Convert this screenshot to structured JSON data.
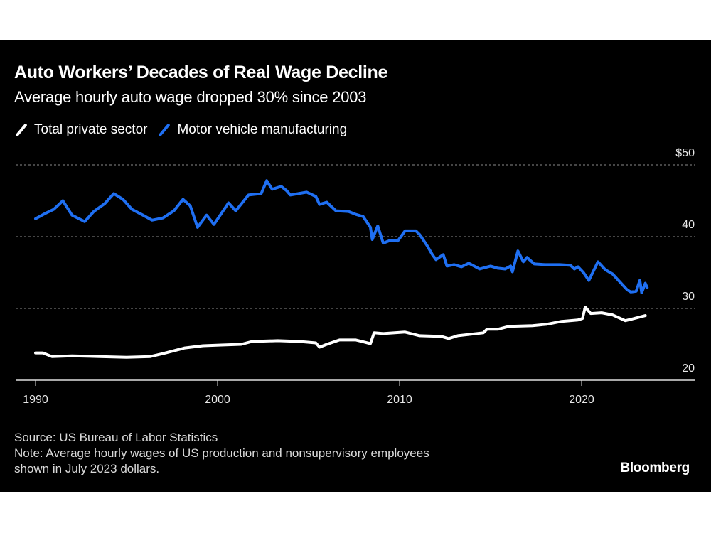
{
  "header": {
    "title": "Auto Workers’ Decades of Real Wage Decline",
    "subtitle": "Average hourly auto wage dropped 30% since 2003"
  },
  "legend": [
    {
      "label": "Total private sector",
      "color": "#ffffff"
    },
    {
      "label": "Motor vehicle manufacturing",
      "color": "#1f6ff2"
    }
  ],
  "footer": {
    "source": "Source: US Bureau of Labor Statistics",
    "note_line1": "Note: Average hourly wages of US production and nonsupervisory employees",
    "note_line2": "shown in July 2023 dollars.",
    "brand": "Bloomberg"
  },
  "chart_data": {
    "type": "line",
    "title": "Auto Workers’ Decades of Real Wage Decline",
    "subtitle": "Average hourly auto wage dropped 30% since 2003",
    "xlabel": "",
    "ylabel": "",
    "xlim": [
      1989,
      2026
    ],
    "ylim": [
      20,
      50
    ],
    "x_ticks": [
      1990,
      2000,
      2010,
      2020
    ],
    "x_tick_labels": [
      "1990",
      "2000",
      "2010",
      "2020"
    ],
    "y_ticks": [
      20,
      30,
      40,
      50
    ],
    "y_tick_labels": [
      "20",
      "30",
      "40",
      "$50"
    ],
    "grid": "horizontal dotted",
    "legend_position": "top-left",
    "series": [
      {
        "name": "Total private sector",
        "color": "#ffffff",
        "x": [
          1990,
          1990.4,
          1990.9,
          1992,
          1993.5,
          1995,
          1996.3,
          1997,
          1998.2,
          1999.2,
          2000.2,
          2001.3,
          2001.9,
          2003.3,
          2004.5,
          2005.4,
          2005.6,
          2006,
          2006.7,
          2007.6,
          2008.4,
          2008.6,
          2009.1,
          2010.3,
          2011.1,
          2012.3,
          2012.7,
          2013.2,
          2014.6,
          2014.8,
          2015.4,
          2016,
          2017.3,
          2018.1,
          2018.9,
          2019.8,
          2020.05,
          2020.2,
          2020.5,
          2021.1,
          2021.7,
          2022.4,
          2022.9,
          2023.5
        ],
        "values": [
          23.8,
          23.8,
          23.3,
          23.4,
          23.3,
          23.2,
          23.3,
          23.7,
          24.5,
          24.8,
          24.9,
          25.0,
          25.4,
          25.5,
          25.4,
          25.2,
          24.6,
          25.0,
          25.6,
          25.6,
          25.1,
          26.6,
          26.5,
          26.7,
          26.2,
          26.1,
          25.8,
          26.2,
          26.6,
          27.1,
          27.1,
          27.5,
          27.6,
          27.8,
          28.2,
          28.4,
          28.6,
          30.2,
          29.3,
          29.4,
          29.1,
          28.3,
          28.6,
          29.0
        ]
      },
      {
        "name": "Motor vehicle manufacturing",
        "color": "#1f6ff2",
        "x": [
          1990,
          1990.5,
          1991,
          1991.5,
          1992,
          1992.7,
          1993.2,
          1993.8,
          1994.3,
          1994.8,
          1995.3,
          1995.9,
          1996.4,
          1997,
          1997.6,
          1998.1,
          1998.5,
          1998.9,
          1999.4,
          1999.8,
          2000.6,
          2001,
          2001.7,
          2002.4,
          2002.7,
          2003,
          2003.5,
          2003.8,
          2004,
          2004.9,
          2005.4,
          2005.6,
          2006,
          2006.5,
          2007.2,
          2007.6,
          2008,
          2008.4,
          2008.5,
          2008.8,
          2009.1,
          2009.5,
          2009.9,
          2010.3,
          2010.9,
          2011.1,
          2011.5,
          2011.8,
          2012,
          2012.4,
          2012.6,
          2013,
          2013.4,
          2013.8,
          2014.4,
          2015,
          2015.4,
          2015.8,
          2016.1,
          2016.2,
          2016.5,
          2016.8,
          2017,
          2017.4,
          2018,
          2018.8,
          2019.4,
          2019.6,
          2019.8,
          2020.1,
          2020.4,
          2020.9,
          2021.3,
          2021.7,
          2022.1,
          2022.5,
          2022.7,
          2023,
          2023.2,
          2023.3,
          2023.5,
          2023.6
        ],
        "values": [
          42.5,
          43.2,
          43.8,
          45.0,
          43.0,
          42.1,
          43.5,
          44.6,
          46.0,
          45.2,
          43.8,
          43.0,
          42.3,
          42.6,
          43.6,
          45.2,
          44.3,
          41.3,
          43.0,
          41.7,
          44.7,
          43.6,
          45.8,
          46.0,
          47.8,
          46.6,
          47.0,
          46.4,
          45.8,
          46.2,
          45.6,
          44.5,
          44.8,
          43.6,
          43.5,
          43.1,
          42.8,
          41.3,
          39.6,
          41.5,
          39.1,
          39.5,
          39.4,
          40.8,
          40.8,
          40.3,
          38.8,
          37.5,
          36.8,
          37.5,
          35.9,
          36.1,
          35.8,
          36.3,
          35.5,
          35.9,
          35.6,
          35.5,
          35.9,
          35.1,
          38.0,
          36.5,
          37.1,
          36.2,
          36.1,
          36.1,
          36.0,
          35.5,
          35.8,
          35.0,
          33.9,
          36.5,
          35.4,
          34.8,
          33.7,
          32.6,
          32.3,
          32.4,
          33.9,
          32.2,
          33.5,
          32.9
        ]
      }
    ]
  }
}
